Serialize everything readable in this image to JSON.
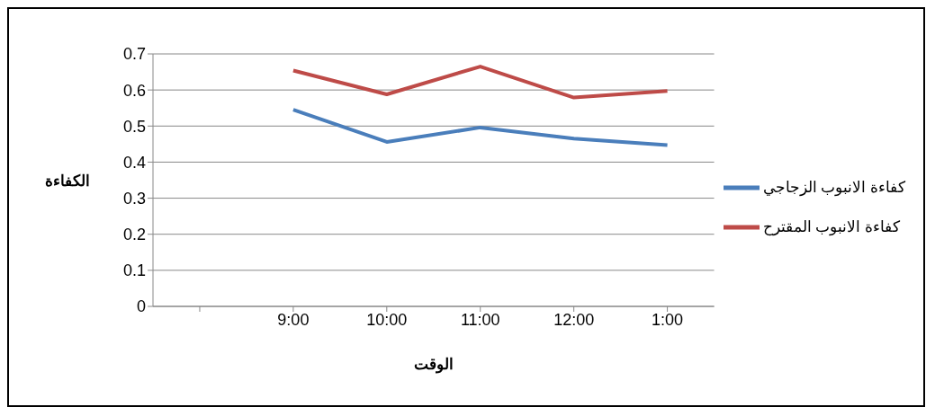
{
  "chart_data": {
    "type": "line",
    "xlabel": "الوقت",
    "ylabel": "الكفاءة",
    "categories": [
      null,
      "9:00",
      "10:00",
      "11:00",
      "12:00",
      "1:00"
    ],
    "series": [
      {
        "name": "كفاءة الانبوب الزجاجي",
        "color": "#4a7ebb",
        "values": [
          null,
          0.545,
          0.456,
          0.496,
          0.465,
          0.447
        ]
      },
      {
        "name": "كفاءة الانبوب المقترح",
        "color": "#be4b48",
        "values": [
          null,
          0.654,
          0.588,
          0.665,
          0.579,
          0.597
        ]
      }
    ],
    "ylim": [
      0,
      0.7
    ],
    "yticks": [
      0,
      0.1,
      0.2,
      0.3,
      0.4,
      0.5,
      0.6,
      0.7
    ],
    "grid": "y",
    "legend": "right",
    "marker": "none",
    "line_style": "solid"
  }
}
